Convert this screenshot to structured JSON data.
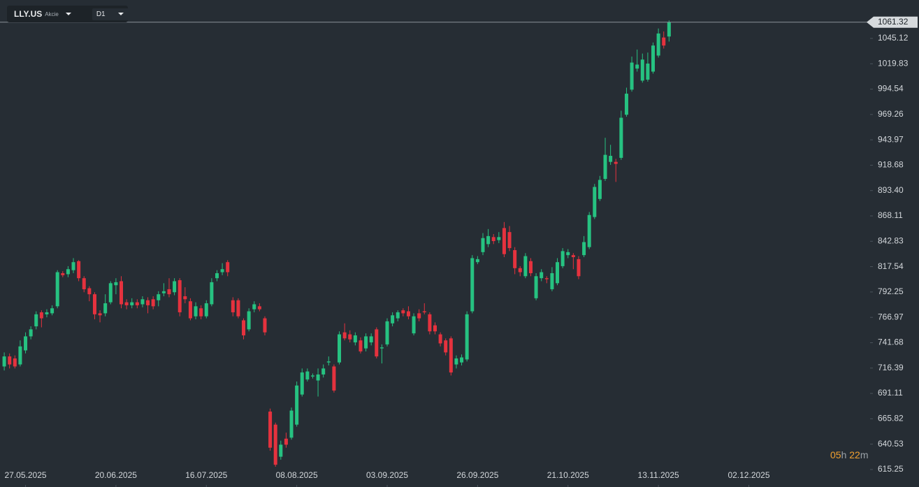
{
  "toolbar": {
    "symbol": "LLY.US",
    "asset_type": "Akcie",
    "timeframe": "D1"
  },
  "countdown": {
    "hours": "05",
    "hours_unit": "h",
    "minutes": "22",
    "minutes_unit": "m"
  },
  "chart_data": {
    "type": "candlestick",
    "up_color": "#26c281",
    "down_color": "#e5323e",
    "last_price": 1061.32,
    "open": [
      718,
      728,
      726,
      720,
      734,
      748,
      758,
      772,
      770,
      771,
      778,
      811,
      810,
      814,
      823,
      806,
      796,
      790,
      771,
      771,
      782,
      799,
      803,
      782,
      779,
      782,
      780,
      784,
      785,
      784,
      791,
      795,
      792,
      804,
      788,
      783,
      768,
      776,
      768,
      780,
      806,
      812,
      822,
      784,
      784,
      764,
      755,
      775,
      778,
      766,
      673,
      660,
      628,
      646,
      647,
      660,
      690,
      705,
      708,
      704,
      710,
      722,
      718,
      722,
      752,
      750,
      742,
      744,
      736,
      742,
      755,
      736,
      740,
      761,
      766,
      774,
      773,
      751,
      771,
      773,
      770,
      759,
      750,
      744,
      746,
      720,
      722,
      725,
      773,
      822,
      832,
      840,
      847,
      844,
      856,
      852,
      834,
      816,
      808,
      823,
      786,
      806,
      806,
      795,
      801,
      818,
      829,
      829,
      825,
      829,
      837,
      867,
      885,
      905,
      922,
      922,
      926,
      969,
      994,
      1015,
      1003,
      1004,
      1012,
      1028,
      1046,
      1047
    ],
    "high": [
      732,
      731,
      729,
      744,
      752,
      758,
      773,
      774,
      775,
      779,
      814,
      813,
      818,
      826,
      824,
      808,
      798,
      792,
      774,
      790,
      803,
      806,
      808,
      785,
      786,
      785,
      788,
      787,
      788,
      793,
      801,
      806,
      806,
      806,
      797,
      786,
      782,
      779,
      784,
      806,
      814,
      821,
      824,
      787,
      786,
      766,
      776,
      783,
      781,
      768,
      676,
      662,
      644,
      652,
      677,
      703,
      716,
      716,
      711,
      716,
      720,
      728,
      720,
      753,
      761,
      754,
      752,
      747,
      751,
      751,
      757,
      740,
      766,
      772,
      774,
      776,
      778,
      771,
      775,
      781,
      772,
      762,
      752,
      746,
      748,
      729,
      730,
      773,
      829,
      828,
      851,
      855,
      850,
      852,
      862,
      858,
      837,
      818,
      831,
      826,
      811,
      815,
      808,
      817,
      826,
      836,
      835,
      831,
      828,
      848,
      872,
      900,
      908,
      946,
      939,
      925,
      973,
      996,
      1027,
      1034,
      1030,
      1031,
      1041,
      1055,
      1052,
      1063
    ],
    "low": [
      714,
      716,
      716,
      718,
      731,
      745,
      755,
      757,
      767,
      769,
      776,
      807,
      807,
      811,
      803,
      792,
      783,
      765,
      762,
      768,
      780,
      790,
      776,
      775,
      776,
      776,
      777,
      771,
      775,
      778,
      788,
      787,
      789,
      768,
      781,
      764,
      765,
      765,
      766,
      778,
      803,
      809,
      808,
      768,
      766,
      745,
      753,
      772,
      773,
      749,
      634,
      618,
      625,
      637,
      645,
      658,
      688,
      703,
      706,
      688,
      707,
      719,
      692,
      720,
      744,
      742,
      739,
      731,
      733,
      739,
      726,
      721,
      738,
      758,
      763,
      768,
      765,
      749,
      763,
      770,
      750,
      750,
      738,
      729,
      709,
      716,
      719,
      723,
      771,
      820,
      829,
      837,
      840,
      841,
      827,
      833,
      810,
      808,
      806,
      808,
      784,
      803,
      801,
      793,
      799,
      816,
      826,
      815,
      805,
      827,
      835,
      865,
      883,
      903,
      919,
      902,
      924,
      967,
      992,
      1012,
      1001,
      1002,
      1010,
      1026,
      1035,
      1042
    ],
    "close": [
      728,
      720,
      718,
      738,
      748,
      755,
      770,
      766,
      772,
      776,
      812,
      809,
      815,
      822,
      806,
      795,
      790,
      770,
      769,
      781,
      801,
      802,
      780,
      779,
      782,
      779,
      785,
      779,
      778,
      790,
      793,
      790,
      803,
      772,
      785,
      766,
      778,
      768,
      781,
      802,
      811,
      815,
      812,
      772,
      768,
      749,
      773,
      780,
      775,
      752,
      637,
      620,
      640,
      640,
      674,
      699,
      712,
      713,
      709,
      710,
      716,
      723,
      694,
      750,
      746,
      745,
      749,
      733,
      748,
      748,
      728,
      737,
      763,
      769,
      772,
      771,
      768,
      768,
      766,
      772,
      753,
      753,
      741,
      732,
      712,
      726,
      727,
      770,
      826,
      825,
      846,
      848,
      843,
      847,
      830,
      836,
      816,
      812,
      828,
      811,
      808,
      812,
      805,
      811,
      822,
      833,
      832,
      827,
      808,
      842,
      869,
      897,
      904,
      929,
      928,
      920,
      966,
      990,
      1021,
      1019,
      1024,
      1020,
      1038,
      1050,
      1038,
      1061.32
    ],
    "xlim": [
      -0.8,
      162.8
    ],
    "xticks": [
      {
        "value": 4,
        "label": "27.05.2025"
      },
      {
        "value": 21,
        "label": "20.06.2025"
      },
      {
        "value": 38,
        "label": "16.07.2025"
      },
      {
        "value": 55,
        "label": "08.08.2025"
      },
      {
        "value": 72,
        "label": "03.09.2025"
      },
      {
        "value": 89,
        "label": "26.09.2025"
      },
      {
        "value": 106,
        "label": "21.10.2025"
      },
      {
        "value": 123,
        "label": "13.11.2025"
      },
      {
        "value": 140,
        "label": "02.12.2025"
      }
    ],
    "ylim": [
      597.8,
      1083.4
    ],
    "yticks": [
      1045.12,
      1019.83,
      994.54,
      969.26,
      943.97,
      918.68,
      {
        "value": 893.4,
        "label": "893.40"
      },
      868.11,
      842.83,
      817.54,
      792.25,
      766.97,
      741.68,
      716.39,
      691.11,
      665.82,
      640.53,
      615.25
    ]
  }
}
